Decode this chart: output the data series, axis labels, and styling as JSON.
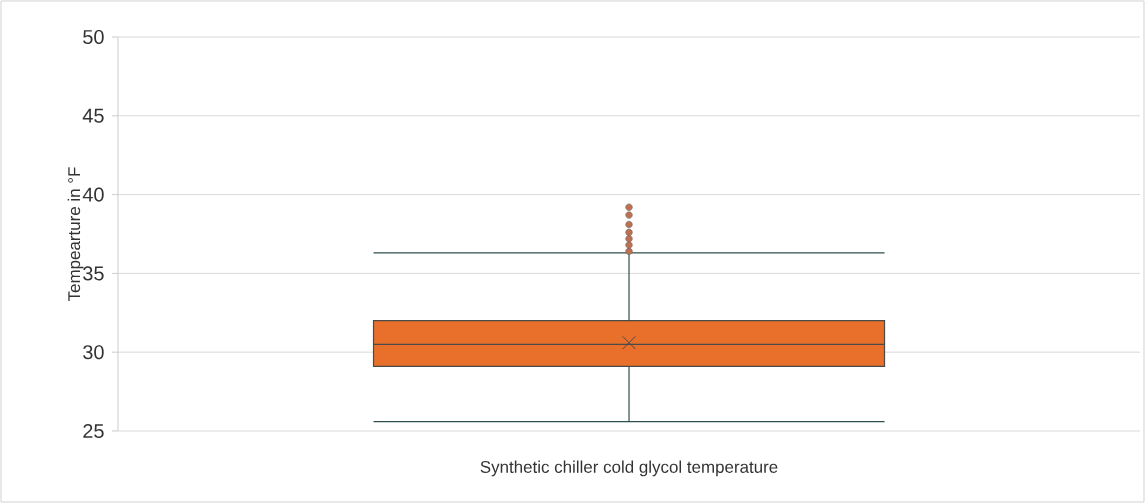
{
  "chart_data": {
    "type": "box",
    "ylabel": "Tempearture in °F",
    "categories": [
      "Synthetic chiller cold glycol temperature"
    ],
    "boxes": [
      {
        "low": 25.6,
        "q1": 29.1,
        "median": 30.5,
        "q3": 32.0,
        "high": 36.3,
        "mean": 30.6,
        "outliers": [
          36.4,
          36.8,
          37.2,
          37.6,
          38.1,
          38.7,
          39.2
        ]
      }
    ],
    "color": "#e8702a",
    "ylim": [
      25,
      50
    ],
    "yticks": [
      25,
      30,
      35,
      40,
      45,
      50
    ],
    "grid": "y"
  }
}
